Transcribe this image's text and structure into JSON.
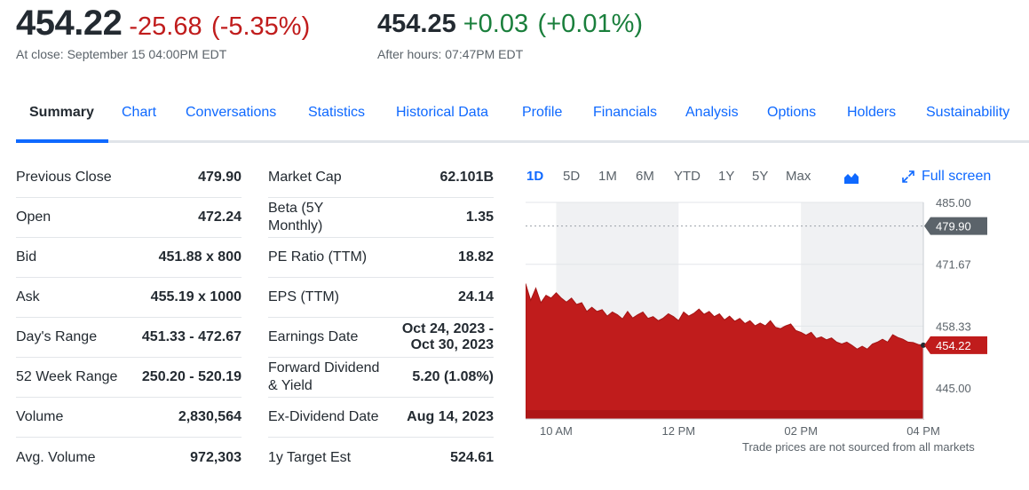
{
  "quote": {
    "price": "454.22",
    "change": "-25.68",
    "change_pct": "(-5.35%)",
    "close_note": "At close: September 15 04:00PM EDT",
    "ah_price": "454.25",
    "ah_change": "+0.03",
    "ah_change_pct": "(+0.01%)",
    "ah_note": "After hours: 07:47PM EDT"
  },
  "colors": {
    "up": "#1a7f3c",
    "down": "#c01c1c",
    "link": "#0f69ff",
    "chart_fill": "#c01c1c"
  },
  "tabs": [
    {
      "label": "Summary"
    },
    {
      "label": "Chart"
    },
    {
      "label": "Conversations"
    },
    {
      "label": "Statistics"
    },
    {
      "label": "Historical Data"
    },
    {
      "label": "Profile"
    },
    {
      "label": "Financials"
    },
    {
      "label": "Analysis"
    },
    {
      "label": "Options"
    },
    {
      "label": "Holders"
    },
    {
      "label": "Sustainability"
    }
  ],
  "stats_left": [
    {
      "label": "Previous Close",
      "value": "479.90"
    },
    {
      "label": "Open",
      "value": "472.24"
    },
    {
      "label": "Bid",
      "value": "451.88 x 800"
    },
    {
      "label": "Ask",
      "value": "455.19 x 1000"
    },
    {
      "label": "Day's Range",
      "value": "451.33 - 472.67"
    },
    {
      "label": "52 Week Range",
      "value": "250.20 - 520.19"
    },
    {
      "label": "Volume",
      "value": "2,830,564"
    },
    {
      "label": "Avg. Volume",
      "value": "972,303"
    }
  ],
  "stats_right": [
    {
      "label": "Market Cap",
      "value": "62.101B"
    },
    {
      "label": "Beta (5Y Monthly)",
      "value": "1.35"
    },
    {
      "label": "PE Ratio (TTM)",
      "value": "18.82"
    },
    {
      "label": "EPS (TTM)",
      "value": "24.14"
    },
    {
      "label": "Earnings Date",
      "value": "Oct 24, 2023 - Oct 30, 2023"
    },
    {
      "label": "Forward Dividend & Yield",
      "value": "5.20 (1.08%)"
    },
    {
      "label": "Ex-Dividend Date",
      "value": "Aug 14, 2023"
    },
    {
      "label": "1y Target Est",
      "value": "524.61"
    }
  ],
  "chart": {
    "ranges": [
      "1D",
      "5D",
      "1M",
      "6M",
      "YTD",
      "1Y",
      "5Y",
      "Max"
    ],
    "active_range": "1D",
    "chart_type_icon": "mountain-chart-icon",
    "fullscreen_label": "Full screen",
    "fullscreen_icon": "expand-icon",
    "footnote": "Trade prices are not sourced from all markets"
  },
  "chart_data": {
    "type": "area",
    "x_tick_labels": [
      "10 AM",
      "12 PM",
      "02 PM",
      "04 PM"
    ],
    "y_tick_labels": [
      "485.00",
      "471.67",
      "458.33",
      "445.00"
    ],
    "ylim": [
      438.33,
      485.0
    ],
    "previous_close_label": "479.90",
    "previous_close": 479.9,
    "last_price_label": "454.22",
    "last_price": 454.22,
    "x_hours": [
      9.5,
      9.583,
      9.667,
      9.75,
      9.833,
      9.917,
      10.0,
      10.083,
      10.167,
      10.25,
      10.333,
      10.417,
      10.5,
      10.583,
      10.667,
      10.75,
      10.833,
      10.917,
      11.0,
      11.083,
      11.167,
      11.25,
      11.333,
      11.417,
      11.5,
      11.583,
      11.667,
      11.75,
      11.833,
      11.917,
      12.0,
      12.083,
      12.167,
      12.25,
      12.333,
      12.417,
      12.5,
      12.583,
      12.667,
      12.75,
      12.833,
      12.917,
      13.0,
      13.083,
      13.167,
      13.25,
      13.333,
      13.417,
      13.5,
      13.583,
      13.667,
      13.75,
      13.833,
      13.917,
      14.0,
      14.083,
      14.167,
      14.25,
      14.333,
      14.417,
      14.5,
      14.583,
      14.667,
      14.75,
      14.833,
      14.917,
      15.0,
      15.083,
      15.167,
      15.25,
      15.333,
      15.417,
      15.5,
      15.583,
      15.667,
      15.75,
      15.833,
      15.917,
      16.0
    ],
    "y_prices": [
      467.5,
      464.0,
      466.5,
      463.5,
      465.0,
      464.5,
      465.5,
      464.5,
      463.5,
      464.5,
      463.0,
      463.5,
      461.5,
      462.5,
      461.5,
      462.0,
      460.5,
      461.5,
      460.8,
      460.0,
      461.5,
      460.2,
      460.8,
      461.5,
      460.0,
      460.5,
      459.5,
      460.2,
      461.0,
      460.5,
      459.5,
      461.5,
      460.5,
      461.2,
      462.0,
      461.0,
      461.5,
      460.5,
      461.0,
      459.8,
      460.5,
      459.5,
      460.0,
      459.0,
      459.5,
      458.5,
      459.0,
      458.5,
      459.5,
      458.2,
      457.8,
      458.5,
      458.8,
      457.5,
      457.0,
      456.5,
      457.0,
      455.8,
      456.0,
      455.5,
      455.8,
      455.0,
      454.5,
      455.0,
      454.2,
      453.5,
      454.0,
      453.5,
      454.5,
      455.0,
      455.5,
      455.0,
      456.5,
      456.0,
      455.5,
      455.0,
      454.8,
      454.5,
      454.22
    ]
  }
}
